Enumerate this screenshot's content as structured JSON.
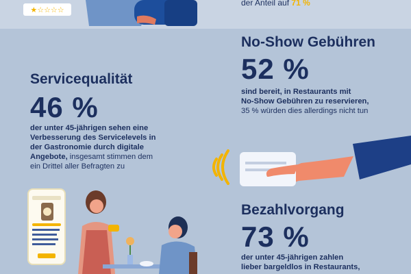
{
  "top": {
    "rating_stars": 5,
    "rating_filled": 1,
    "text_prefix": "der Anteil auf ",
    "text_value": "71 %"
  },
  "no_show": {
    "heading": "No-Show Gebühren",
    "stat": "52 %",
    "line1": "sind bereit, in Restaurants mit",
    "line2": "No-Show Gebühren zu reservieren,",
    "line3": "35 % würden dies allerdings nicht tun"
  },
  "service": {
    "heading": "Servicequalität",
    "stat": "46 %",
    "line1": "der unter 45-jährigen sehen eine",
    "line2": "Verbesserung des Servicelevels in",
    "line3": "der Gastronomie durch digitale",
    "line4_bold": "Angebote,",
    "line4_rest": " insgesamt stimmen dem",
    "line5": "ein Drittel aller Befragten zu"
  },
  "payment": {
    "heading": "Bezahlvorgang",
    "stat": "73 %",
    "line1": "der unter 45-jährigen zahlen",
    "line2": "lieber bargeldlos in Restaurants,"
  },
  "colors": {
    "background": "#b4c4d8",
    "navy": "#1c2f5e",
    "accent_yellow": "#f3b400"
  },
  "icons": [
    "laptop-illustration",
    "star-rating-icon",
    "card-payment-hand-illustration",
    "contactless-icon",
    "phone-app-illustration",
    "cafe-scene-illustration"
  ]
}
